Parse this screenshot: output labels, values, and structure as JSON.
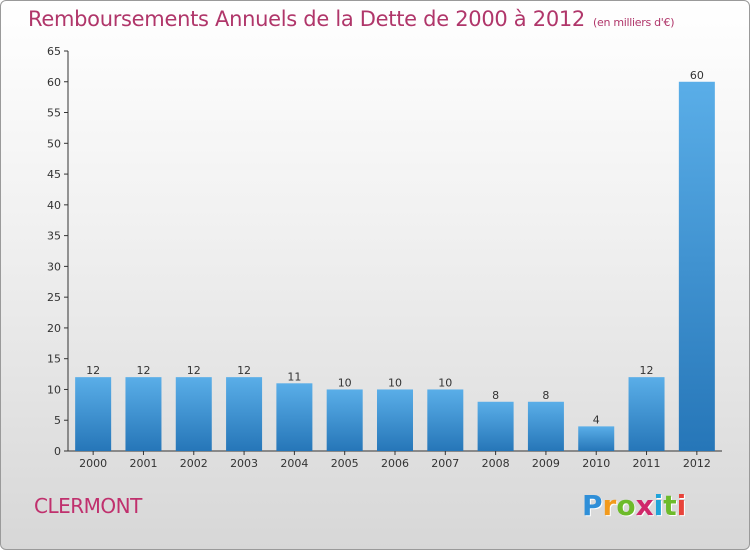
{
  "title": "Remboursements Annuels de la Dette de 2000 à 2012",
  "subtitle": "(en milliers d'€)",
  "commune": "CLERMONT",
  "logo": {
    "letters": [
      "P",
      "r",
      "o",
      "x",
      "i",
      "t",
      "i"
    ],
    "colors": [
      "#2f8fd8",
      "#f29a1c",
      "#6dbb2a",
      "#d0286a",
      "#1fa3d9",
      "#6dbb2a",
      "#e8433a"
    ]
  },
  "colors": {
    "bar_light": "#5aaee8",
    "bar_dark": "#2676b8",
    "title": "#b0366a"
  },
  "chart_data": {
    "type": "bar",
    "title": "Remboursements Annuels de la Dette de 2000 à 2012",
    "xlabel": "",
    "ylabel": "",
    "categories": [
      "2000",
      "2001",
      "2002",
      "2003",
      "2004",
      "2005",
      "2006",
      "2007",
      "2008",
      "2009",
      "2010",
      "2011",
      "2012"
    ],
    "values": [
      12,
      12,
      12,
      12,
      11,
      10,
      10,
      10,
      8,
      8,
      4,
      12,
      60
    ],
    "ylim": [
      0,
      65
    ],
    "yticks": [
      0,
      5,
      10,
      15,
      20,
      25,
      30,
      35,
      40,
      45,
      50,
      55,
      60,
      65
    ],
    "grid": false
  }
}
